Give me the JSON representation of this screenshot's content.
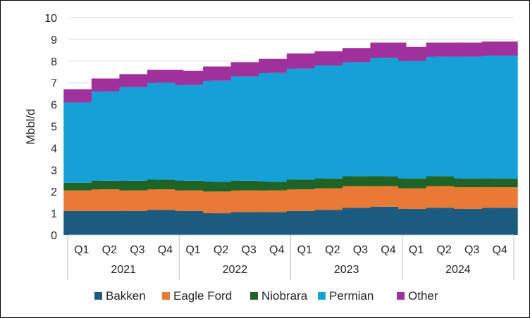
{
  "chart_data": {
    "type": "bar",
    "stacked": true,
    "title": "",
    "xlabel": "",
    "ylabel": "Mbbl/d",
    "ylim": [
      0,
      10
    ],
    "yticks": [
      0,
      1,
      2,
      3,
      4,
      5,
      6,
      7,
      8,
      9,
      10
    ],
    "grid": true,
    "legend_position": "bottom",
    "quarters": [
      "Q1",
      "Q2",
      "Q3",
      "Q4",
      "Q1",
      "Q2",
      "Q3",
      "Q4",
      "Q1",
      "Q2",
      "Q3",
      "Q4",
      "Q1",
      "Q2",
      "Q3",
      "Q4"
    ],
    "years": [
      "2021",
      "2022",
      "2023",
      "2024"
    ],
    "series": [
      {
        "name": "Bakken",
        "color": "#1b5b80",
        "values": [
          1.1,
          1.1,
          1.1,
          1.15,
          1.1,
          1.0,
          1.05,
          1.05,
          1.1,
          1.15,
          1.25,
          1.3,
          1.2,
          1.25,
          1.2,
          1.25
        ]
      },
      {
        "name": "Eagle Ford",
        "color": "#e87a36",
        "values": [
          0.95,
          1.0,
          0.95,
          0.95,
          0.95,
          1.0,
          1.0,
          1.0,
          1.0,
          1.0,
          1.0,
          0.95,
          0.95,
          1.0,
          1.0,
          0.95
        ]
      },
      {
        "name": "Niobrara",
        "color": "#1e6426",
        "values": [
          0.35,
          0.4,
          0.45,
          0.45,
          0.45,
          0.45,
          0.45,
          0.4,
          0.45,
          0.45,
          0.45,
          0.45,
          0.45,
          0.45,
          0.4,
          0.4
        ]
      },
      {
        "name": "Permian",
        "color": "#15a1d8",
        "values": [
          3.7,
          4.1,
          4.3,
          4.45,
          4.4,
          4.65,
          4.8,
          5.0,
          5.1,
          5.2,
          5.25,
          5.45,
          5.4,
          5.5,
          5.6,
          5.65
        ]
      },
      {
        "name": "Other",
        "color": "#a0309b",
        "values": [
          0.6,
          0.6,
          0.6,
          0.6,
          0.65,
          0.65,
          0.65,
          0.65,
          0.7,
          0.65,
          0.65,
          0.7,
          0.65,
          0.65,
          0.65,
          0.65
        ]
      }
    ]
  }
}
